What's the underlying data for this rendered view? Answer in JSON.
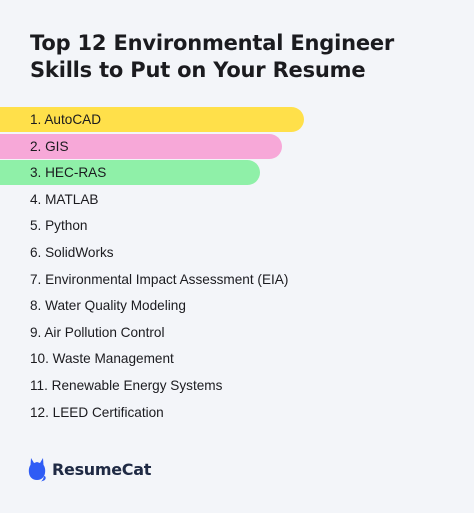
{
  "title": {
    "line1": "Top 12 Environmental Engineer",
    "line2": "Skills to Put on Your Resume"
  },
  "skills": [
    {
      "label": "1. AutoCAD",
      "color": "#ffe04a"
    },
    {
      "label": "2. GIS",
      "color": "#f7a8d8"
    },
    {
      "label": "3. HEC-RAS",
      "color": "#8ff0a8"
    },
    {
      "label": "4. MATLAB"
    },
    {
      "label": "5. Python"
    },
    {
      "label": "6. SolidWorks"
    },
    {
      "label": "7. Environmental Impact Assessment (EIA)"
    },
    {
      "label": "8. Water Quality Modeling"
    },
    {
      "label": "9. Air Pollution Control"
    },
    {
      "label": "10. Waste Management"
    },
    {
      "label": "11. Renewable Energy Systems"
    },
    {
      "label": "12. LEED Certification"
    }
  ],
  "brand": {
    "name": "ResumeCat",
    "icon": "cat-logo-icon",
    "color": "#2f5cf5"
  }
}
